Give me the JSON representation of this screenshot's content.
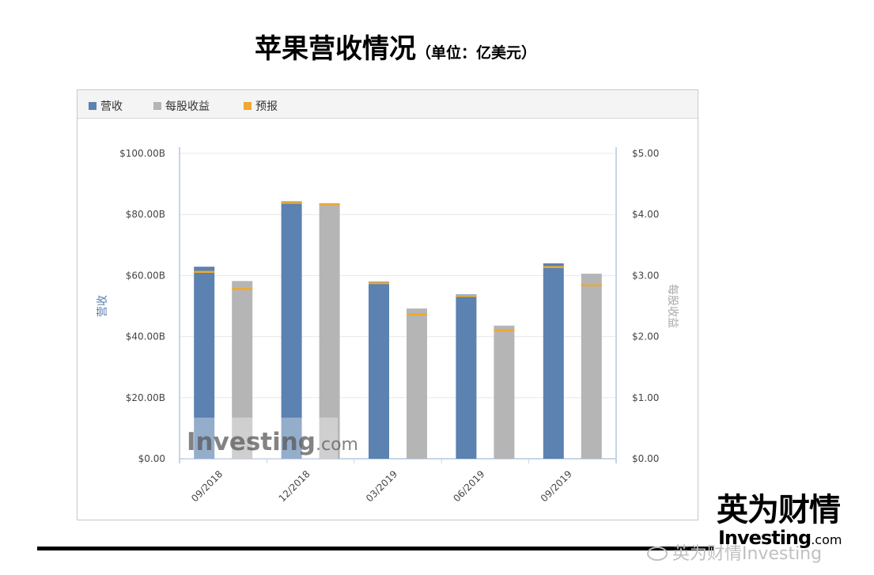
{
  "header": {
    "title": "苹果营收情况",
    "unit": "（单位：亿美元）"
  },
  "legend": [
    {
      "label": "营收",
      "color": "#5b82b0"
    },
    {
      "label": "每股收益",
      "color": "#b5b5b5"
    },
    {
      "label": "预报",
      "color": "#f0a830"
    }
  ],
  "watermark": {
    "main": "Investing",
    "suffix": ".com"
  },
  "branding": {
    "cn": "英为财情",
    "en": "Investing",
    "en_suffix": ".com",
    "weibo": "英为财情Investing"
  },
  "colors": {
    "revenue": "#5b82b0",
    "eps": "#b5b5b5",
    "forecast": "#f0a830",
    "axis": "#c6d6ea",
    "grid": "#e8e8e8"
  },
  "chart_data": {
    "type": "bar",
    "categories": [
      "09/2018",
      "12/2018",
      "03/2019",
      "06/2019",
      "09/2019"
    ],
    "series": [
      {
        "name": "营收",
        "axis": "left",
        "values": [
          62.9,
          84.3,
          58.0,
          53.8,
          64.0
        ],
        "forecast": [
          61.2,
          83.8,
          57.5,
          53.3,
          62.8
        ]
      },
      {
        "name": "每股收益",
        "axis": "right",
        "values": [
          2.91,
          4.18,
          2.46,
          2.18,
          3.03
        ],
        "forecast": [
          2.78,
          4.17,
          2.36,
          2.1,
          2.84
        ]
      }
    ],
    "ylabel_left": "营收",
    "ylabel_right": "每股收益",
    "yticks_left": [
      "$0.00",
      "$20.00B",
      "$40.00B",
      "$60.00B",
      "$80.00B",
      "$100.00B"
    ],
    "yticks_right": [
      "$0.00",
      "$1.00",
      "$2.00",
      "$3.00",
      "$4.00",
      "$5.00"
    ],
    "ylim_left": [
      0,
      100
    ],
    "ylim_right": [
      0,
      5
    ],
    "grid": true,
    "legend_position": "top-left"
  }
}
